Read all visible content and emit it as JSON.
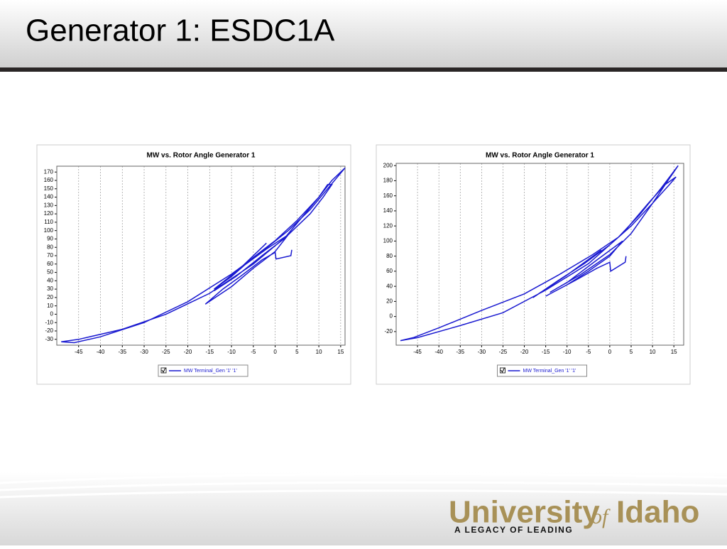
{
  "slide_title": "Generator 1: ESDC1A",
  "logo": {
    "university": "University",
    "of": "of",
    "idaho": "Idaho",
    "tagline": "A LEGACY OF LEADING"
  },
  "chart_data": [
    {
      "type": "line",
      "title": "MW vs. Rotor Angle Generator 1",
      "x": [
        3.8,
        3.6,
        0.2,
        0,
        -3,
        -8,
        -12,
        -16,
        -10,
        -5,
        0,
        3,
        -2,
        -8,
        -12,
        -14,
        -9,
        -3,
        2,
        6,
        10,
        13,
        16,
        12,
        8,
        3,
        -3,
        -10,
        -20,
        -30,
        -40,
        -46,
        -49,
        -45,
        -35,
        -25,
        -15,
        -5,
        3,
        8,
        11,
        13,
        12,
        10,
        5,
        0,
        -5,
        -10,
        -14,
        -8,
        -2
      ],
      "series": [
        {
          "name": "MW Terminal_Gen '1' '1'",
          "color": "#1a1ad0",
          "values": [
            77,
            70,
            66,
            74,
            65,
            45,
            30,
            12,
            33,
            55,
            75,
            95,
            78,
            55,
            38,
            28,
            45,
            70,
            90,
            115,
            140,
            160,
            175,
            150,
            125,
            100,
            75,
            48,
            15,
            -10,
            -27,
            -34,
            -33,
            -30,
            -18,
            0,
            25,
            60,
            95,
            120,
            140,
            155,
            155,
            140,
            112,
            88,
            68,
            45,
            30,
            55,
            85
          ]
        }
      ],
      "xlim": [
        -50,
        16
      ],
      "xticks": [
        -45,
        -40,
        -35,
        -30,
        -25,
        -20,
        -15,
        -10,
        -5,
        0,
        5,
        10,
        15
      ],
      "ylim": [
        -37,
        177
      ],
      "yticks": [
        -30,
        -20,
        -10,
        0,
        10,
        20,
        30,
        40,
        50,
        60,
        70,
        80,
        90,
        100,
        110,
        120,
        130,
        140,
        150,
        160,
        170
      ],
      "grid": true
    },
    {
      "type": "line",
      "title": "MW vs. Rotor Angle Generator 1",
      "x": [
        3.8,
        3.6,
        0.2,
        0,
        -3,
        -8,
        -12,
        -15,
        -10,
        -5,
        0,
        3,
        -3,
        -10,
        -14,
        -7,
        0,
        5,
        10,
        13,
        16,
        12,
        7,
        2,
        -4,
        -12,
        -20,
        -30,
        -40,
        -46,
        -49,
        -45,
        -35,
        -25,
        -15,
        -5,
        3,
        9,
        13,
        15.5,
        14,
        10,
        5,
        0,
        -6,
        -12,
        -18,
        -10,
        -2
      ],
      "series": [
        {
          "name": "MW Terminal_Gen '1' '1'",
          "color": "#1a1ad0",
          "values": [
            80,
            72,
            60,
            72,
            64,
            48,
            36,
            27,
            42,
            60,
            80,
            100,
            75,
            45,
            32,
            55,
            82,
            110,
            150,
            175,
            200,
            170,
            135,
            105,
            82,
            55,
            30,
            8,
            -15,
            -28,
            -32,
            -28,
            -12,
            5,
            35,
            70,
            110,
            150,
            175,
            185,
            175,
            150,
            120,
            95,
            70,
            48,
            25,
            55,
            88
          ]
        }
      ],
      "xlim": [
        -50,
        17.3
      ],
      "xticks": [
        -45,
        -40,
        -35,
        -30,
        -25,
        -20,
        -15,
        -10,
        -5,
        0,
        5,
        10,
        15
      ],
      "ylim": [
        -38,
        203
      ],
      "yticks": [
        -20,
        0,
        20,
        40,
        60,
        80,
        100,
        120,
        140,
        160,
        180,
        200
      ],
      "grid": true
    }
  ]
}
